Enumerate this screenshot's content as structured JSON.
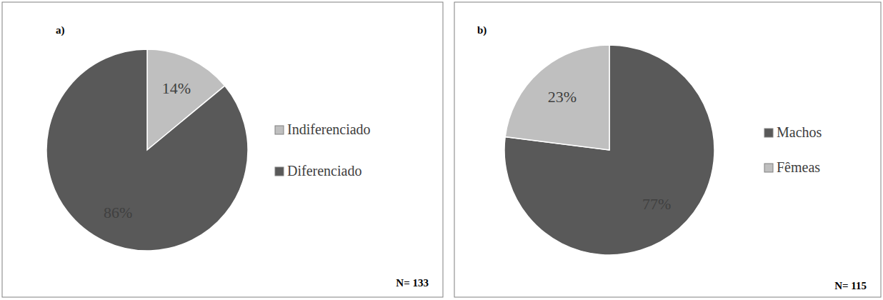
{
  "chart_data": [
    {
      "type": "pie",
      "title": "a)",
      "categories": [
        "Indiferenciado",
        "Diferenciado"
      ],
      "values": [
        14,
        86
      ],
      "value_labels": [
        "14%",
        "86%"
      ],
      "colors": [
        "#bfbfbf",
        "#595959"
      ],
      "data_labels": true,
      "legend": "right",
      "annotations": [
        "N= 133"
      ]
    },
    {
      "type": "pie",
      "title": "b)",
      "categories": [
        "Machos",
        "Fêmeas"
      ],
      "values": [
        77,
        23
      ],
      "value_labels": [
        "77%",
        "23%"
      ],
      "colors": [
        "#595959",
        "#bfbfbf"
      ],
      "data_labels": true,
      "legend": "right",
      "annotations": [
        "N= 115"
      ]
    }
  ]
}
